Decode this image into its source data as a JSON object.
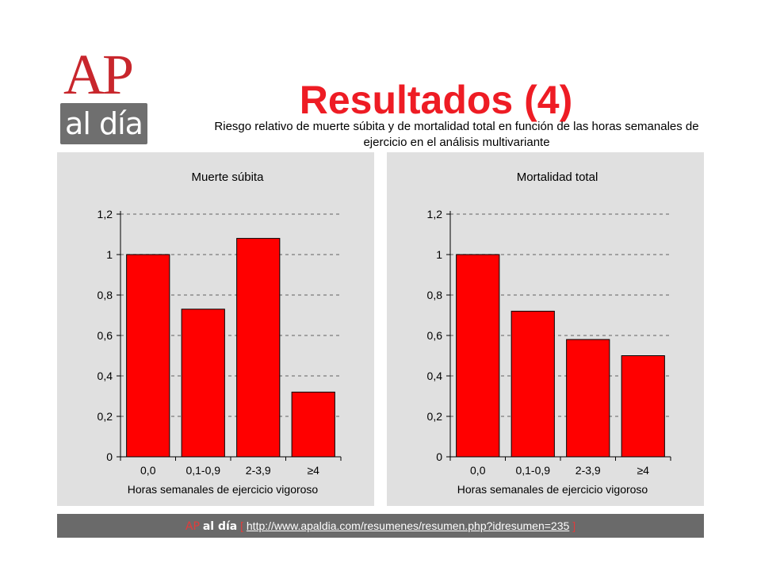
{
  "logo": {
    "ap": "AP",
    "aldia": "al día"
  },
  "title": "Resultados (4)",
  "subtitle": "Riesgo relativo de muerte súbita y de mortalidad total en función de las horas semanales de ejercicio en el análisis multivariante",
  "footer": {
    "brand_ap": "AP",
    "brand_aldia": "al día",
    "bracket_open": "[",
    "link": "http://www.apaldia.com/resumenes/resumen.php?idresumen=235",
    "bracket_close": "]"
  },
  "colors": {
    "bar": "#ff0000",
    "title": "#ee1c24",
    "panel": "#e0e0e0",
    "footer": "#6a6a6a"
  },
  "chart_data": [
    {
      "type": "bar",
      "title": "Muerte súbita",
      "categories": [
        "0,0",
        "0,1-0,9",
        "2-3,9",
        "≥4"
      ],
      "values": [
        1.0,
        0.73,
        1.08,
        0.32
      ],
      "xlabel": "Horas semanales de ejercicio vigoroso",
      "ylabel": "",
      "ylim": [
        0,
        1.2
      ],
      "yticks": [
        "0",
        "0,2",
        "0,4",
        "0,6",
        "0,8",
        "1",
        "1,2"
      ],
      "grid": true
    },
    {
      "type": "bar",
      "title": "Mortalidad total",
      "categories": [
        "0,0",
        "0,1-0,9",
        "2-3,9",
        "≥4"
      ],
      "values": [
        1.0,
        0.72,
        0.58,
        0.5
      ],
      "xlabel": "Horas semanales de ejercicio vigoroso",
      "ylabel": "",
      "ylim": [
        0,
        1.2
      ],
      "yticks": [
        "0",
        "0,2",
        "0,4",
        "0,6",
        "0,8",
        "1",
        "1,2"
      ],
      "grid": true
    }
  ]
}
